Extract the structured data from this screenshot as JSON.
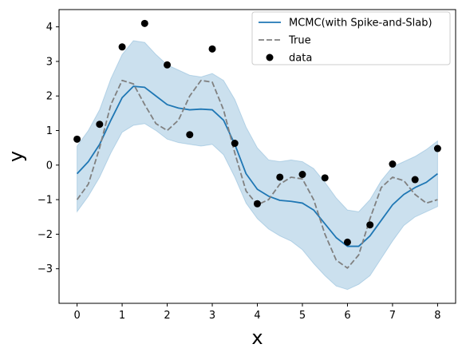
{
  "chart_data": {
    "type": "line",
    "title": "",
    "xlabel": "x",
    "ylabel": "y",
    "xlim": [
      -0.4,
      8.4
    ],
    "ylim": [
      -4.0,
      4.5
    ],
    "xticks": [
      0,
      1,
      2,
      3,
      4,
      5,
      6,
      7,
      8
    ],
    "yticks": [
      -3,
      -2,
      -1,
      0,
      1,
      2,
      3,
      4
    ],
    "grid": false,
    "legend_position": "top-right",
    "band": {
      "color": "#1f77b4",
      "x": [
        0,
        0.25,
        0.5,
        0.75,
        1,
        1.25,
        1.5,
        1.75,
        2,
        2.25,
        2.5,
        2.75,
        3,
        3.25,
        3.5,
        3.75,
        4,
        4.25,
        4.5,
        4.75,
        5,
        5.25,
        5.5,
        5.75,
        6,
        6.25,
        6.5,
        6.75,
        7,
        7.25,
        7.5,
        7.75,
        8
      ],
      "upper": [
        0.55,
        1.0,
        1.6,
        2.5,
        3.2,
        3.6,
        3.55,
        3.2,
        2.9,
        2.75,
        2.6,
        2.55,
        2.65,
        2.45,
        1.9,
        1.1,
        0.5,
        0.15,
        0.1,
        0.15,
        0.1,
        -0.1,
        -0.5,
        -0.95,
        -1.3,
        -1.35,
        -1.0,
        -0.45,
        -0.05,
        0.1,
        0.25,
        0.45,
        0.7
      ],
      "lower": [
        -1.35,
        -0.9,
        -0.35,
        0.35,
        0.95,
        1.15,
        1.2,
        1.0,
        0.75,
        0.65,
        0.6,
        0.55,
        0.6,
        0.3,
        -0.35,
        -1.1,
        -1.55,
        -1.85,
        -2.05,
        -2.2,
        -2.45,
        -2.85,
        -3.2,
        -3.5,
        -3.6,
        -3.45,
        -3.2,
        -2.7,
        -2.2,
        -1.75,
        -1.5,
        -1.35,
        -1.2
      ]
    },
    "series": [
      {
        "name": "MCMC(with Spike-and-Slab)",
        "kind": "line",
        "color": "#1f77b4",
        "dash": "solid",
        "x": [
          0,
          0.25,
          0.5,
          0.75,
          1,
          1.25,
          1.5,
          1.75,
          2,
          2.25,
          2.5,
          2.75,
          3,
          3.25,
          3.5,
          3.75,
          4,
          4.25,
          4.5,
          4.75,
          5,
          5.25,
          5.5,
          5.75,
          6,
          6.25,
          6.5,
          6.75,
          7,
          7.25,
          7.5,
          7.75,
          8
        ],
        "y": [
          -0.25,
          0.1,
          0.6,
          1.3,
          1.95,
          2.28,
          2.25,
          2.0,
          1.75,
          1.65,
          1.6,
          1.62,
          1.6,
          1.3,
          0.6,
          -0.25,
          -0.7,
          -0.9,
          -1.02,
          -1.05,
          -1.1,
          -1.3,
          -1.7,
          -2.1,
          -2.35,
          -2.35,
          -2.05,
          -1.6,
          -1.15,
          -0.85,
          -0.65,
          -0.5,
          -0.25
        ]
      },
      {
        "name": "True",
        "kind": "line",
        "color": "#808080",
        "dash": "dashed",
        "x": [
          0,
          0.25,
          0.5,
          0.75,
          1,
          1.25,
          1.5,
          1.75,
          2,
          2.25,
          2.5,
          2.75,
          3,
          3.25,
          3.5,
          3.75,
          4,
          4.25,
          4.5,
          4.75,
          5,
          5.25,
          5.5,
          5.75,
          6,
          6.25,
          6.5,
          6.75,
          7,
          7.25,
          7.5,
          7.75,
          8
        ],
        "y": [
          -1.0,
          -0.55,
          0.5,
          1.75,
          2.45,
          2.35,
          1.75,
          1.2,
          1.0,
          1.3,
          2.0,
          2.45,
          2.4,
          1.6,
          0.35,
          -0.75,
          -1.15,
          -1.0,
          -0.55,
          -0.35,
          -0.4,
          -1.0,
          -2.0,
          -2.75,
          -2.98,
          -2.6,
          -1.55,
          -0.65,
          -0.35,
          -0.45,
          -0.85,
          -1.1,
          -1.0
        ]
      },
      {
        "name": "data",
        "kind": "scatter",
        "color": "#000000",
        "x": [
          0,
          0.5,
          1,
          1.5,
          2,
          2.5,
          3,
          3.5,
          4,
          4.5,
          5,
          5.5,
          6,
          6.5,
          7,
          7.5,
          8
        ],
        "y": [
          0.75,
          1.18,
          3.42,
          4.1,
          2.9,
          0.88,
          3.36,
          0.63,
          -1.12,
          -0.35,
          -0.27,
          -0.37,
          -2.23,
          -1.73,
          0.03,
          -0.42,
          0.48
        ]
      }
    ]
  }
}
